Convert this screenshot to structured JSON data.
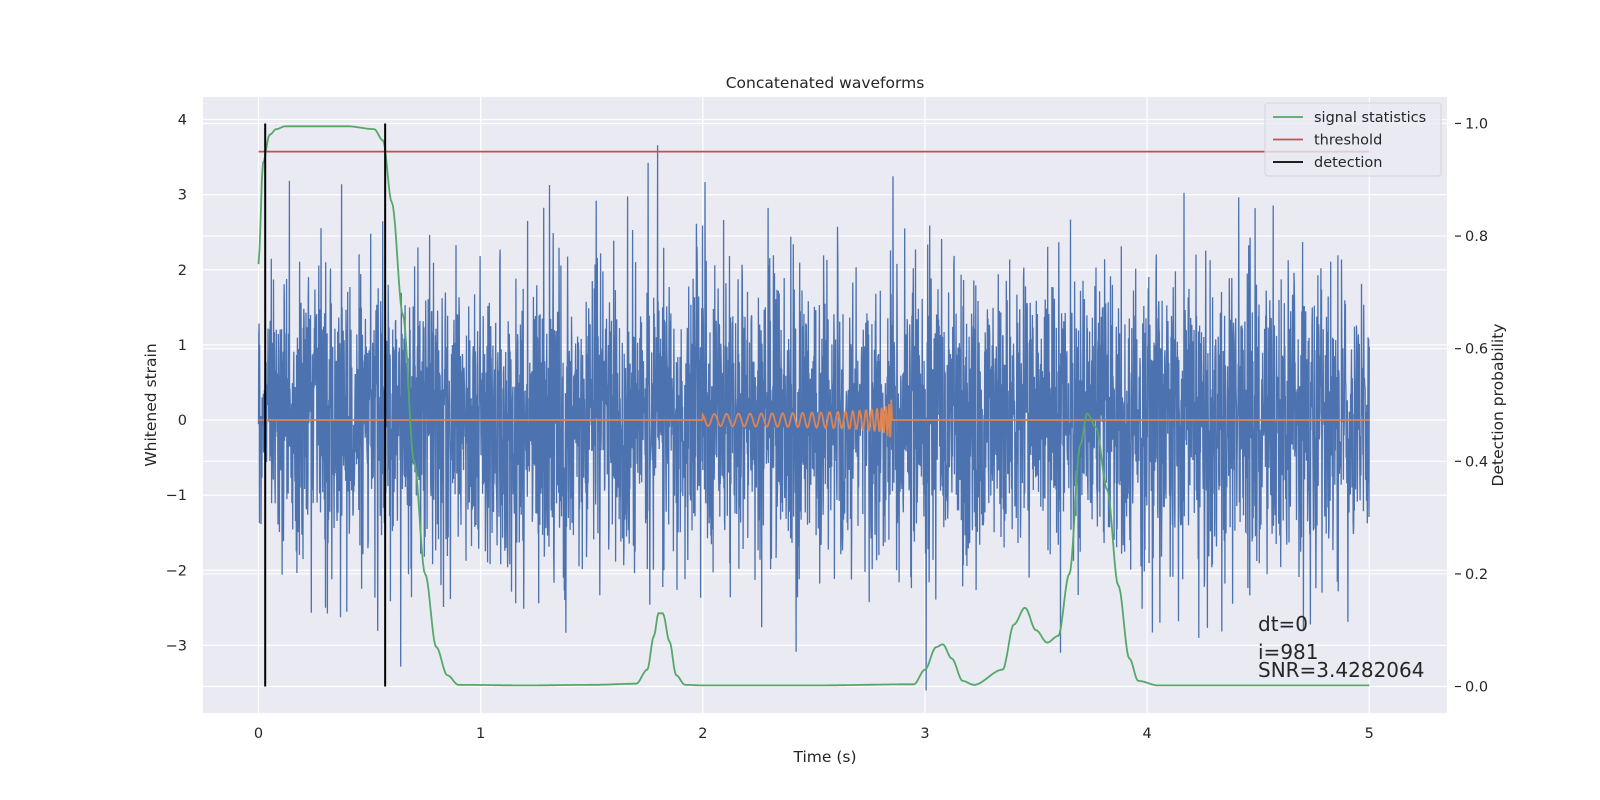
{
  "chart_data": {
    "type": "line",
    "title": "Concatenated waveforms",
    "xlabel": "Time (s)",
    "ylabel": "Whitened strain",
    "y2label": "Detection probability",
    "xlim": [
      -0.25,
      5.35
    ],
    "ylim": [
      -3.9,
      4.3
    ],
    "y2lim": [
      -0.047,
      1.047
    ],
    "xticks": [
      0,
      1,
      2,
      3,
      4,
      5
    ],
    "xtick_labels": [
      "0",
      "1",
      "2",
      "3",
      "4",
      "5"
    ],
    "yticks": [
      -3,
      -2,
      -1,
      0,
      1,
      2,
      3,
      4
    ],
    "ytick_labels": [
      "−3",
      "−2",
      "−1",
      "0",
      "1",
      "2",
      "3",
      "4"
    ],
    "y2ticks": [
      0.0,
      0.2,
      0.4,
      0.6,
      0.8,
      1.0
    ],
    "y2tick_labels": [
      "0.0",
      "0.2",
      "0.4",
      "0.6",
      "0.8",
      "1.0"
    ],
    "grid": true,
    "legend_position": "top-right",
    "colors": {
      "background": "#eaeaf2",
      "grid": "#ffffff",
      "strain": "#4c72b0",
      "template": "#dd8452",
      "signal_statistics": "#55a868",
      "threshold": "#c44e52",
      "detection": "#000000"
    },
    "series": [
      {
        "name": "whitened strain",
        "axis": "left",
        "description": "noisy whitened detector strain, roughly between -3.6 and 4.0, over 0 to 5 s"
      },
      {
        "name": "template waveform",
        "axis": "left",
        "description": "chirp from 2.0 s to 2.85 s, amplitude growing to about 0.6",
        "x_start": 2.0,
        "x_merger": 2.85,
        "peak_amplitude": 0.6
      },
      {
        "name": "signal statistics",
        "axis": "right",
        "x": [
          0,
          0.02,
          0.05,
          0.08,
          0.12,
          0.2,
          0.4,
          0.52,
          0.56,
          0.6,
          0.65,
          0.7,
          0.75,
          0.8,
          0.85,
          0.9,
          1.2,
          1.5,
          1.7,
          1.75,
          1.78,
          1.8,
          1.82,
          1.85,
          1.88,
          1.92,
          2.0,
          2.5,
          2.95,
          3.0,
          3.05,
          3.08,
          3.12,
          3.17,
          3.22,
          3.35,
          3.4,
          3.45,
          3.5,
          3.55,
          3.6,
          3.65,
          3.7,
          3.73,
          3.77,
          3.82,
          3.87,
          3.92,
          3.96,
          4.05,
          4.5,
          5.0
        ],
        "y": [
          0.75,
          0.93,
          0.98,
          0.99,
          0.995,
          0.995,
          0.995,
          0.99,
          0.97,
          0.86,
          0.66,
          0.4,
          0.2,
          0.07,
          0.02,
          0.003,
          0.002,
          0.003,
          0.005,
          0.03,
          0.09,
          0.13,
          0.13,
          0.08,
          0.02,
          0.003,
          0.002,
          0.002,
          0.004,
          0.03,
          0.07,
          0.075,
          0.05,
          0.01,
          0.003,
          0.03,
          0.11,
          0.14,
          0.1,
          0.078,
          0.09,
          0.2,
          0.43,
          0.485,
          0.46,
          0.35,
          0.18,
          0.05,
          0.01,
          0.002,
          0.002,
          0.002
        ]
      },
      {
        "name": "threshold",
        "axis": "right",
        "x": [
          0,
          5
        ],
        "y": [
          0.95,
          0.95
        ]
      },
      {
        "name": "detection",
        "axis": "right",
        "type": "vline",
        "x": [
          0.03,
          0.57
        ],
        "y_range": [
          0.0,
          1.0
        ]
      }
    ],
    "legend": [
      "signal statistics",
      "threshold",
      "detection"
    ],
    "annotations": {
      "dt": "dt=0",
      "index": "i=981",
      "snr": "SNR=3.4282064"
    }
  }
}
